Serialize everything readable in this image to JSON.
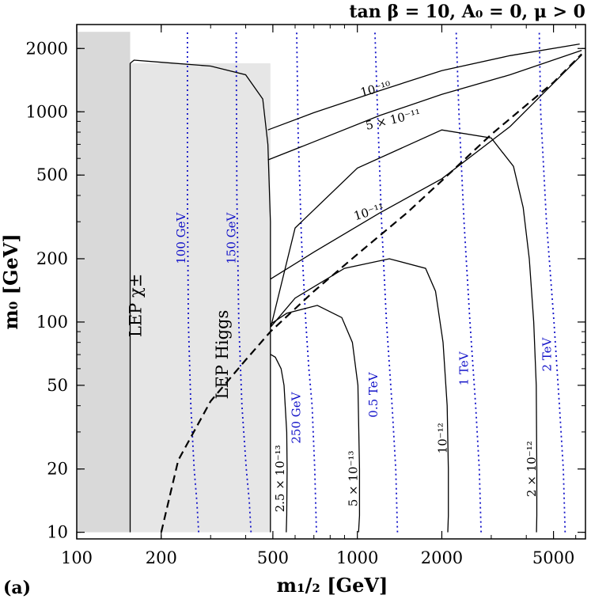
{
  "panel_label": "(a)",
  "chart_data": {
    "type": "line",
    "title": "tan β = 10,  A₀ = 0,  μ > 0",
    "xlabel": "m₁/₂ [GeV]",
    "ylabel": "m₀ [GeV]",
    "xscale": "log",
    "yscale": "log",
    "xlim": [
      100,
      6500
    ],
    "ylim": [
      9.3,
      2600
    ],
    "x_ticks": [
      100,
      200,
      500,
      1000,
      2000,
      5000
    ],
    "x_tick_labels": [
      "100",
      "200",
      "500",
      "1000",
      "2000",
      "5000"
    ],
    "y_ticks": [
      10,
      20,
      50,
      100,
      200,
      500,
      1000,
      2000
    ],
    "y_tick_labels": [
      "10",
      "20",
      "50",
      "100",
      "200",
      "500",
      "1000",
      "2000"
    ],
    "grid": false,
    "colors": {
      "lep_chargino_region": "#d9d9d9",
      "lep_higgs_region": "#e6e6e6",
      "contour": "#000000",
      "mass_contour": "#1010c8"
    },
    "regions": [
      {
        "name": "LEP χ±",
        "label": "LEP χ±",
        "x_range": [
          100,
          155
        ],
        "y_range": [
          10,
          2400
        ]
      },
      {
        "name": "LEP Higgs",
        "label": "LEP Higgs",
        "x_range": [
          155,
          490
        ],
        "y_range": [
          10,
          1700
        ]
      }
    ],
    "mass_contours": [
      {
        "label": "100 GeV",
        "x": [
          272,
          268,
          262,
          255,
          250,
          248,
          248
        ],
        "y": [
          10,
          14,
          20,
          40,
          100,
          400,
          2400
        ]
      },
      {
        "label": "150 GeV",
        "x": [
          418,
          412,
          402,
          388,
          378,
          372,
          370
        ],
        "y": [
          10,
          14,
          20,
          40,
          100,
          400,
          2400
        ]
      },
      {
        "label": "250 GeV",
        "x": [
          715,
          705,
          690,
          672,
          655,
          632,
          615,
          608
        ],
        "y": [
          10,
          20,
          40,
          60,
          100,
          250,
          800,
          2400
        ]
      },
      {
        "label": "0.5 TeV",
        "x": [
          1390,
          1370,
          1330,
          1270,
          1220,
          1180,
          1155
        ],
        "y": [
          10,
          20,
          40,
          100,
          300,
          1000,
          2400
        ]
      },
      {
        "label": "1 TeV",
        "x": [
          2760,
          2720,
          2640,
          2520,
          2400,
          2300,
          2250
        ],
        "y": [
          10,
          20,
          40,
          100,
          300,
          1000,
          2400
        ]
      },
      {
        "label": "2 TeV",
        "x": [
          5500,
          5420,
          5250,
          5020,
          4720,
          4500,
          4450
        ],
        "y": [
          10,
          20,
          40,
          100,
          300,
          1000,
          2400
        ]
      }
    ],
    "upper_contours": [
      {
        "label": "10⁻¹⁰",
        "x": [
          480,
          700,
          1200,
          2000,
          3500,
          6200
        ],
        "y": [
          820,
          990,
          1260,
          1570,
          1850,
          2100
        ]
      },
      {
        "label": "5 × 10⁻¹¹",
        "x": [
          480,
          700,
          1200,
          2000,
          3500,
          6300
        ],
        "y": [
          590,
          720,
          960,
          1210,
          1500,
          1960
        ]
      },
      {
        "label": "10⁻¹¹",
        "x": [
          490,
          700,
          1200,
          2000,
          3500,
          6300
        ],
        "y": [
          160,
          215,
          330,
          480,
          850,
          1860
        ]
      }
    ],
    "dashed_boundary": {
      "label": "",
      "x": [
        200,
        230,
        300,
        400,
        490,
        700,
        1000,
        1500,
        2000,
        3000,
        5000,
        6300
      ],
      "y": [
        10,
        22,
        42,
        66,
        90,
        140,
        210,
        330,
        470,
        780,
        1380,
        1880
      ]
    },
    "lower_contours": [
      {
        "label": "2.5 × 10⁻¹³",
        "x": [
          558,
          560,
          562,
          560,
          548,
          535,
          510,
          492
        ],
        "y": [
          10,
          12,
          20,
          30,
          50,
          60,
          68,
          70
        ]
      },
      {
        "label": "5 × 10⁻¹³",
        "x": [
          1010,
          1018,
          1018,
          1005,
          960,
          880,
          720,
          560,
          492
        ],
        "y": [
          10,
          12,
          20,
          50,
          80,
          105,
          120,
          110,
          98
        ]
      },
      {
        "label": "10⁻¹²",
        "x": [
          2100,
          2110,
          2110,
          2090,
          2020,
          1900,
          1750,
          1300,
          900,
          600,
          492
        ],
        "y": [
          10,
          12,
          20,
          40,
          80,
          140,
          180,
          200,
          180,
          130,
          95
        ]
      },
      {
        "label": "2 × 10⁻¹²",
        "x": [
          4350,
          4360,
          4360,
          4340,
          4250,
          4100,
          3900,
          3600,
          3000,
          2000,
          1000,
          600,
          492
        ],
        "y": [
          10,
          12,
          20,
          50,
          100,
          200,
          350,
          550,
          750,
          820,
          540,
          280,
          95
        ]
      }
    ],
    "contour_labels": [
      "10⁻¹⁰",
      "5 × 10⁻¹¹",
      "10⁻¹¹",
      "2.5 × 10⁻¹³",
      "5 × 10⁻¹³",
      "10⁻¹²",
      "2 × 10⁻¹²"
    ],
    "mass_labels": [
      "100 GeV",
      "150 GeV",
      "250 GeV",
      "0.5 TeV",
      "1 TeV",
      "2 TeV"
    ]
  }
}
